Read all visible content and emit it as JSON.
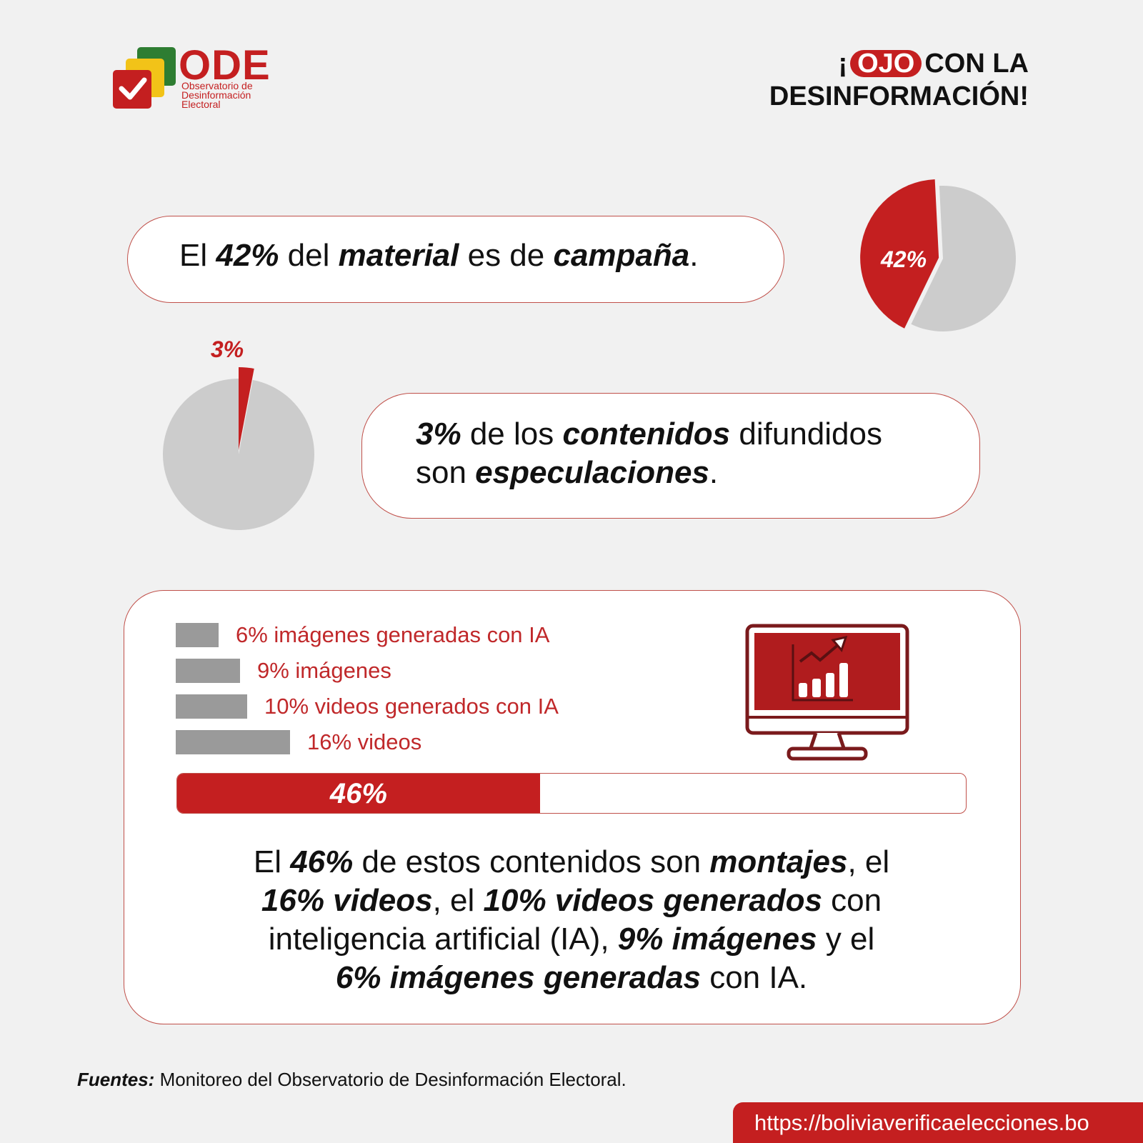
{
  "logo": {
    "name": "ODE",
    "line1": "Observatorio de",
    "line2": "Desinformación",
    "line3": "Electoral",
    "icon": "check-squares-icon"
  },
  "headline": {
    "pre": "¡",
    "pill": "OJO",
    "post": "CON LA",
    "line2": "DESINFORMACIÓN!"
  },
  "stat1": {
    "t1": "El ",
    "b1": "42%",
    "t2": " del ",
    "b2": "material",
    "t3": " es de ",
    "b3": "campaña",
    "t4": "."
  },
  "stat2": {
    "b1": "3%",
    "t1": " de los ",
    "b2": "contenidos",
    "t2": " difundidos",
    "t3": "son ",
    "b3": "especulaciones",
    "t4": "."
  },
  "summary": {
    "t1": "El ",
    "b1": "46%",
    "t2": " de estos contenidos son ",
    "b2": "montajes",
    "t3": ", el",
    "b3": "16% videos",
    "t4": ", el ",
    "b4": "10% videos generados",
    "t5": " con",
    "t6": "inteligencia artificial (IA), ",
    "b5": "9% imágenes",
    "t7": " y el",
    "b6": "6% imágenes generadas",
    "t8": " con IA."
  },
  "footer": {
    "sources_label": "Fuentes:",
    "sources_text": " Monitoreo del Observatorio de Desinformación Electoral.",
    "url": "https://boliviaverificaelecciones.bo"
  },
  "colors": {
    "accent": "#c41f20",
    "pie_gray": "#cccccc",
    "bar_gray": "#9a9a9a"
  },
  "chart_data": [
    {
      "type": "pie",
      "name": "campaign-material",
      "slices": [
        {
          "label": "42%",
          "value": 42,
          "color": "#c41f20"
        },
        {
          "label": "",
          "value": 58,
          "color": "#cccccc"
        }
      ]
    },
    {
      "type": "pie",
      "name": "speculation",
      "slices": [
        {
          "label": "3%",
          "value": 3,
          "color": "#c41f20"
        },
        {
          "label": "",
          "value": 97,
          "color": "#cccccc"
        }
      ]
    },
    {
      "type": "bar",
      "orientation": "horizontal",
      "categories": [
        "6% imágenes generadas con IA",
        "9% imágenes",
        "10% videos generados con IA",
        "16% videos"
      ],
      "values": [
        6,
        9,
        10,
        16
      ]
    },
    {
      "type": "bar",
      "orientation": "progress",
      "label": "46%",
      "value": 46,
      "max": 100
    }
  ]
}
